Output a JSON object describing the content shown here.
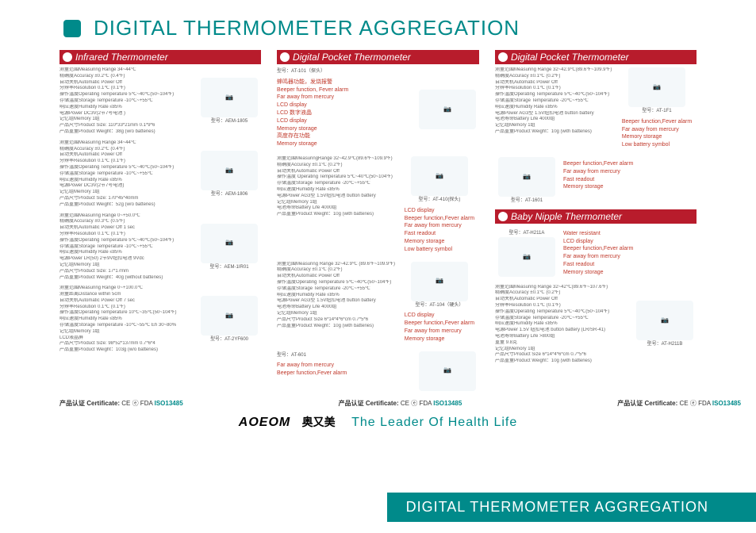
{
  "header": {
    "title": "DIGITAL THERMOMETER AGGREGATION"
  },
  "sections": {
    "infrared": "Infrared Thermometer",
    "pocket1": "Digital Pocket  Thermometer",
    "pocket2": "Digital Pocket  Thermometer",
    "baby": "Baby  Nipple  Thermometer"
  },
  "products": {
    "aem1805": {
      "model": "型号：AEM-1805",
      "specs": [
        "测量范围Measuring Range 34~44℃",
        "精确度Accuracy  ±0.2℃ (0.4℉)",
        "自动关机Automatic Power Off",
        "分辨率Resolution  0.1℃ (0.1℉)",
        "操作温度Operating Temperature  5℃~40℃(50~104℉)",
        "存储温度Storage Temperature   -10℃~+55℃",
        "响应速度Humidity Rate  ≤85%",
        "电源Power  DC3V(2节7号电池 )",
        "记忆组Memory  1组",
        "产品尺寸Product Size: 110*33*21mm  0.1*9*6",
        "产品重量Product Weight：38g (w/o batteries)"
      ]
    },
    "aem1806": {
      "model": "型号：AEM-1806",
      "specs": [
        "测量范围Measuring Range 34~44℃",
        "精确度Accuracy  ±0.2℃ (0.4℉)",
        "自动关机Automatic Power Off",
        "分辨率Resolution  0.1℃ (0.1℉)",
        "操作温度Operating Temperature  5℃~40℃(50~104℉)",
        "存储温度Storage Temperature   -10℃~+55℃",
        "响应速度Humidity Rate  ≤85%",
        "电源Power  DC3V(2节7号电池)",
        "记忆组Memory  1组",
        "产品尺寸Product Size: 170*45*40mm",
        "产品重量Product Weight：52g (w/o batteries)"
      ]
    },
    "aem1ir01": {
      "model": "型号：AEM-1IR01",
      "specs": [
        "测量范围Measuring Range 0~+50.0℃",
        "精确度Accuracy  ±0.3℃ (0.5℉)",
        "自动关机Automatic Power Off  1 sec",
        "分辨率Resolution  0.1℃ (0.1℉)",
        "操作温度Operating Temperature  5℃~40℃(50~104℉)",
        "存储温度Storage Temperature   -10℃~+55℃",
        "响应速度Humidity Rate ≤85%",
        "电源Power LR(50) 2节9V纽扣电池 9Vdc",
        "记忆组Memory  1组",
        "产品尺寸Product Size: 17*17mm",
        "产品重量Product Weight：40g (without batteries)"
      ]
    },
    "at2yf600": {
      "model": "型号：AT-2YF600",
      "specs": [
        "测量范围Measuring Range 0~+100.0℃",
        "测量距离Distance   within 5cm",
        "自动关机Automatic Power Off  7 sec",
        "分辨率Resolution  0.1℃ (0.1℉)",
        "操作温度Operating Temperature  10℃~35℃(50~104℉)",
        "响应速度Humidity Rate ≤85%",
        "存储温度Storage Temperature   -10℃~55℃  Eh 30~80%",
        "记忆组Memory  1组",
        "LCD液晶屏",
        "产品尺寸Product Size: 98*52*137mm  0.7*6*4",
        "产品重量Product Weight：103g (w/o batteries)"
      ]
    },
    "at101": {
      "model": "型号：AT-101（探头）",
      "features": [
        "蜂鸣器功能，发烧报警",
        "Beeper function, Fever alarm",
        "Far away from mercury",
        "LCD display",
        "LCD 数字液晶",
        "LCD display",
        "Memory storage",
        "高度存在功能",
        "Memory storage"
      ]
    },
    "at410": {
      "model": "型号：AT-410(探头)",
      "specs": [
        "测量范围MeasuringRange 32~42.9℃(89.6℉~109.9℉)",
        "精确度Accuracy  ±0.1℃ (0.2℉)",
        "自动关机Automatic Power Off",
        "操作温度 Operating Temperature 5℃~40℃(50~104℉)",
        "存储温度Storage Temperature   -20℃~+55℃",
        "响应速度Humidity Rate ≤85%",
        "电源Power  AG3型 1.5V纽扣电池 button battery",
        "记忆组Memory  1组",
        "电池寿命Battery Life  4000组",
        "产品重量Product Weight：10g (with batteries)"
      ],
      "features": [
        "LCD display",
        "Beeper function,Fever alarm",
        "Far away from mercury",
        "Fast readout",
        "Memory storage",
        "Low battery symbol"
      ]
    },
    "at104": {
      "model": "型号：AT-104（硬头）",
      "specs": [
        "测量范围Measuring Range 32~42.9℃ (89.6℉~109.9℉)",
        "精确度Accuracy  ±0.1℃ (0.2℉)",
        "自动关机Automatic Power Off",
        "操作温度Operating Temperature 5℃~40℃(50~104℉)",
        "存储温度Storage Temperature   -20℃~+55℃",
        "响应速度Humidity Rate ≤85%",
        "电源Power  AG3型 1.5V纽扣电池 button battery",
        "电池寿命Battery Life  4000组",
        "记忆组Memory  1组",
        "产品尺寸Product Size  6*14*4*6*cm  0.7*5*6",
        "产品重量Product Weight：10g (with batteries)"
      ],
      "features": [
        "LCD display",
        "Beeper function,Fever alarm",
        "Far away from mercury",
        "Memory storage"
      ]
    },
    "at601": {
      "model": "型号：AT-601",
      "features": [
        "Far away from mercury",
        "Beeper function,Fever alarm"
      ]
    },
    "at1f1": {
      "model": "型号：AT-1F1",
      "specs": [
        "测量范围Measuring Range  32~42.9℃(89.6℉~109.9℉)",
        "精确度Accuracy  ±0.1℃ (0.2℉)",
        "自动关机Automatic Power Off",
        "分辨率Resolution  0.1℃ (0.1℉)",
        "操作温度Operating Temperature  5℃~40℃(50~104℉)",
        "存储温度Storage Temperature   -20℃~+55℃",
        "响应速度Humidity Rate ≤85%",
        "电源Power  AG3型 1.5V纽扣电池 button battery",
        "电池寿命Battery Life  4000组",
        "记忆组Memory  1组",
        "产品重量Product Weight：10g (with batteries)"
      ],
      "features": [
        "Beeper function,Fever alarm",
        "Far away from mercury",
        "Memory storage",
        "Low battery symbol"
      ]
    },
    "at1601": {
      "model": "型号：AT-1601",
      "features": [
        "Beeper function,Fever alarm",
        "Far away from mercury",
        "Fast readout",
        "Memory storage"
      ]
    },
    "ath211a": {
      "model": "型号：AT-H211A",
      "features": [
        "Water resistant",
        "LCD display",
        "Beeper function,Fever alarm",
        "Far away from mercury",
        "Fast readout",
        "Memory storage"
      ]
    },
    "ath211b": {
      "model": "型号：AT-H211B",
      "specs": [
        "测量范围Measuring Range 32~42℃(89.6℉~107.6℉)",
        "精确度Accuracy  ±0.1℃ (0.2℉)",
        "自动关机Automatic Power Off",
        "分辨率Resolution  0.1℃ (0.1℉)",
        "操作温度Operating Temperature  5℃~40℃(50~104℉)",
        "存储温度Storage Temperature   -20℃~+55℃",
        "响应速度Humidity Rate ≤85%",
        "电源Power  1.5V 纽扣电池  button battery (LR/SR-41)",
        "电池寿命Battery Life  >800组",
        "重量  9.8克",
        "记忆组Memory  1组",
        "产品尺寸Product Size  6*14*4*6*cm  0.7*5*6",
        "产品重量Product Weight：10g (with batteries)"
      ]
    }
  },
  "cert": {
    "label": "产品认证 Certificate:",
    "marks": "CE ⓔ FDA",
    "iso": "ISO13485"
  },
  "brand": {
    "logo": "AOEOM",
    "cn": "奥又美",
    "tag": "The  Leader  Of  Health  Life"
  },
  "footer": "DIGITAL THERMOMETER AGGREGATION"
}
